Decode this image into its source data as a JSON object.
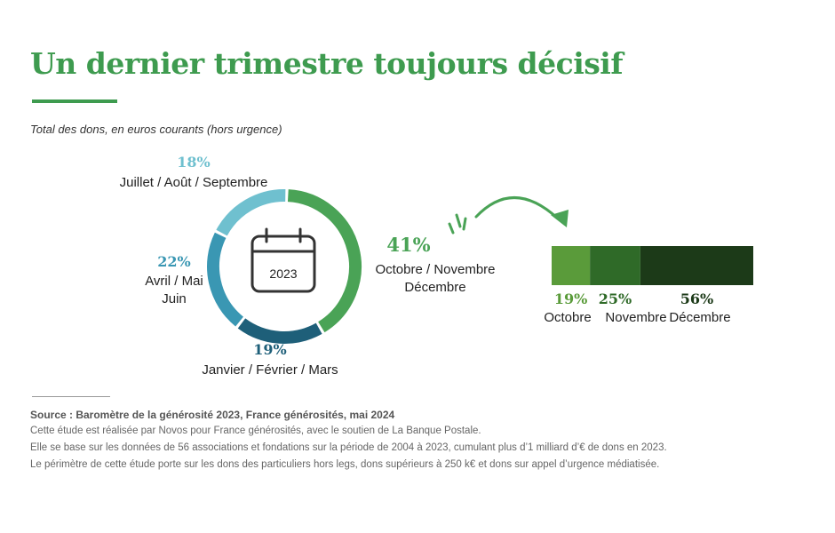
{
  "header": {
    "title": "Un dernier trimestre toujours décisif",
    "subtitle": "Total des dons, en euros courants (hors urgence)"
  },
  "icon": {
    "name": "calendar-icon",
    "year": "2023"
  },
  "colors": {
    "title": "#3e9b4f",
    "q1": "#1e5f79",
    "q2": "#3a97b3",
    "q3": "#6fc0cf",
    "q4": "#4aa356",
    "oct": "#5a9b3a",
    "nov": "#2f6a28",
    "dec": "#1c3a18"
  },
  "chart_data": [
    {
      "type": "pie",
      "categories": [
        "Octobre / Novembre Décembre",
        "Janvier / Février / Mars",
        "Avril / Mai Juin",
        "Juillet / Août / Septembre"
      ],
      "values": [
        41,
        19,
        22,
        18
      ],
      "labels": [
        {
          "pct": "41%",
          "lines": [
            "Octobre / Novembre",
            "Décembre"
          ]
        },
        {
          "pct": "19%",
          "lines": [
            "Janvier / Février / Mars"
          ]
        },
        {
          "pct": "22%",
          "lines": [
            "Avril / Mai",
            "Juin"
          ]
        },
        {
          "pct": "18%",
          "lines": [
            "Juillet / Août / Septembre"
          ]
        }
      ],
      "style": "donut"
    },
    {
      "type": "bar",
      "orientation": "horizontal-stacked",
      "categories": [
        "Octobre",
        "Novembre",
        "Décembre"
      ],
      "values": [
        19,
        25,
        56
      ],
      "labels": [
        "19%",
        "25%",
        "56%"
      ]
    }
  ],
  "footer": {
    "source": "Source : Baromètre de la générosité 2023, France générosités, mai 2024",
    "notes": [
      "Cette étude est réalisée par Novos pour France générosités, avec le soutien de La Banque Postale.",
      "Elle se base sur les données de 56 associations et fondations sur la période de 2004 à 2023, cumulant plus d’1 milliard d’€ de dons en 2023.",
      "Le périmètre de cette étude porte sur les dons des particuliers hors legs, dons supérieurs à 250 k€ et dons sur appel d’urgence médiatisée."
    ]
  }
}
